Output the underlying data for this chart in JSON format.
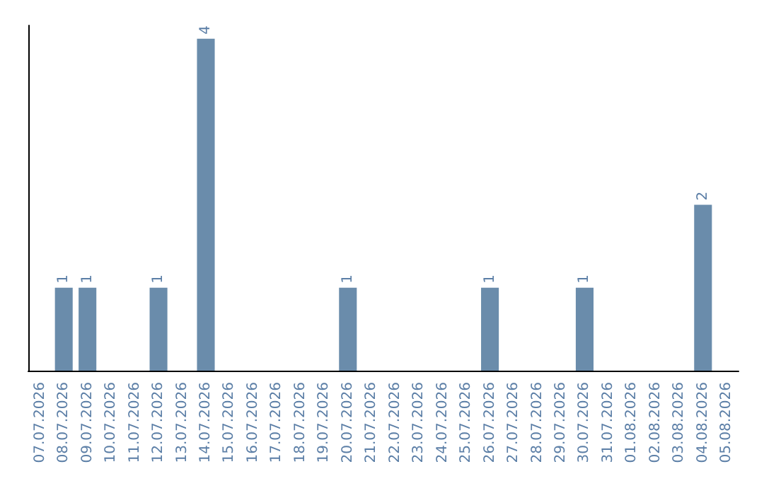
{
  "chart_data": {
    "type": "bar",
    "categories": [
      "07.07.2026",
      "08.07.2026",
      "09.07.2026",
      "10.07.2026",
      "11.07.2026",
      "12.07.2026",
      "13.07.2026",
      "14.07.2026",
      "15.07.2026",
      "16.07.2026",
      "17.07.2026",
      "18.07.2026",
      "19.07.2026",
      "20.07.2026",
      "21.07.2026",
      "22.07.2026",
      "23.07.2026",
      "24.07.2026",
      "25.07.2026",
      "26.07.2026",
      "27.07.2026",
      "28.07.2026",
      "29.07.2026",
      "30.07.2026",
      "31.07.2026",
      "01.08.2026",
      "02.08.2026",
      "03.08.2026",
      "04.08.2026",
      "05.08.2026"
    ],
    "values": [
      0,
      1,
      1,
      0,
      0,
      1,
      0,
      4,
      0,
      0,
      0,
      0,
      0,
      1,
      0,
      0,
      0,
      0,
      0,
      1,
      0,
      0,
      0,
      1,
      0,
      0,
      0,
      0,
      2,
      0
    ],
    "value_labels": [
      null,
      "1",
      "1",
      null,
      null,
      "1",
      null,
      "4",
      null,
      null,
      null,
      null,
      null,
      "1",
      null,
      null,
      null,
      null,
      null,
      "1",
      null,
      null,
      null,
      "1",
      null,
      null,
      null,
      null,
      "2",
      null
    ],
    "color": "#6a8cab",
    "tick_labels": "x"
  }
}
